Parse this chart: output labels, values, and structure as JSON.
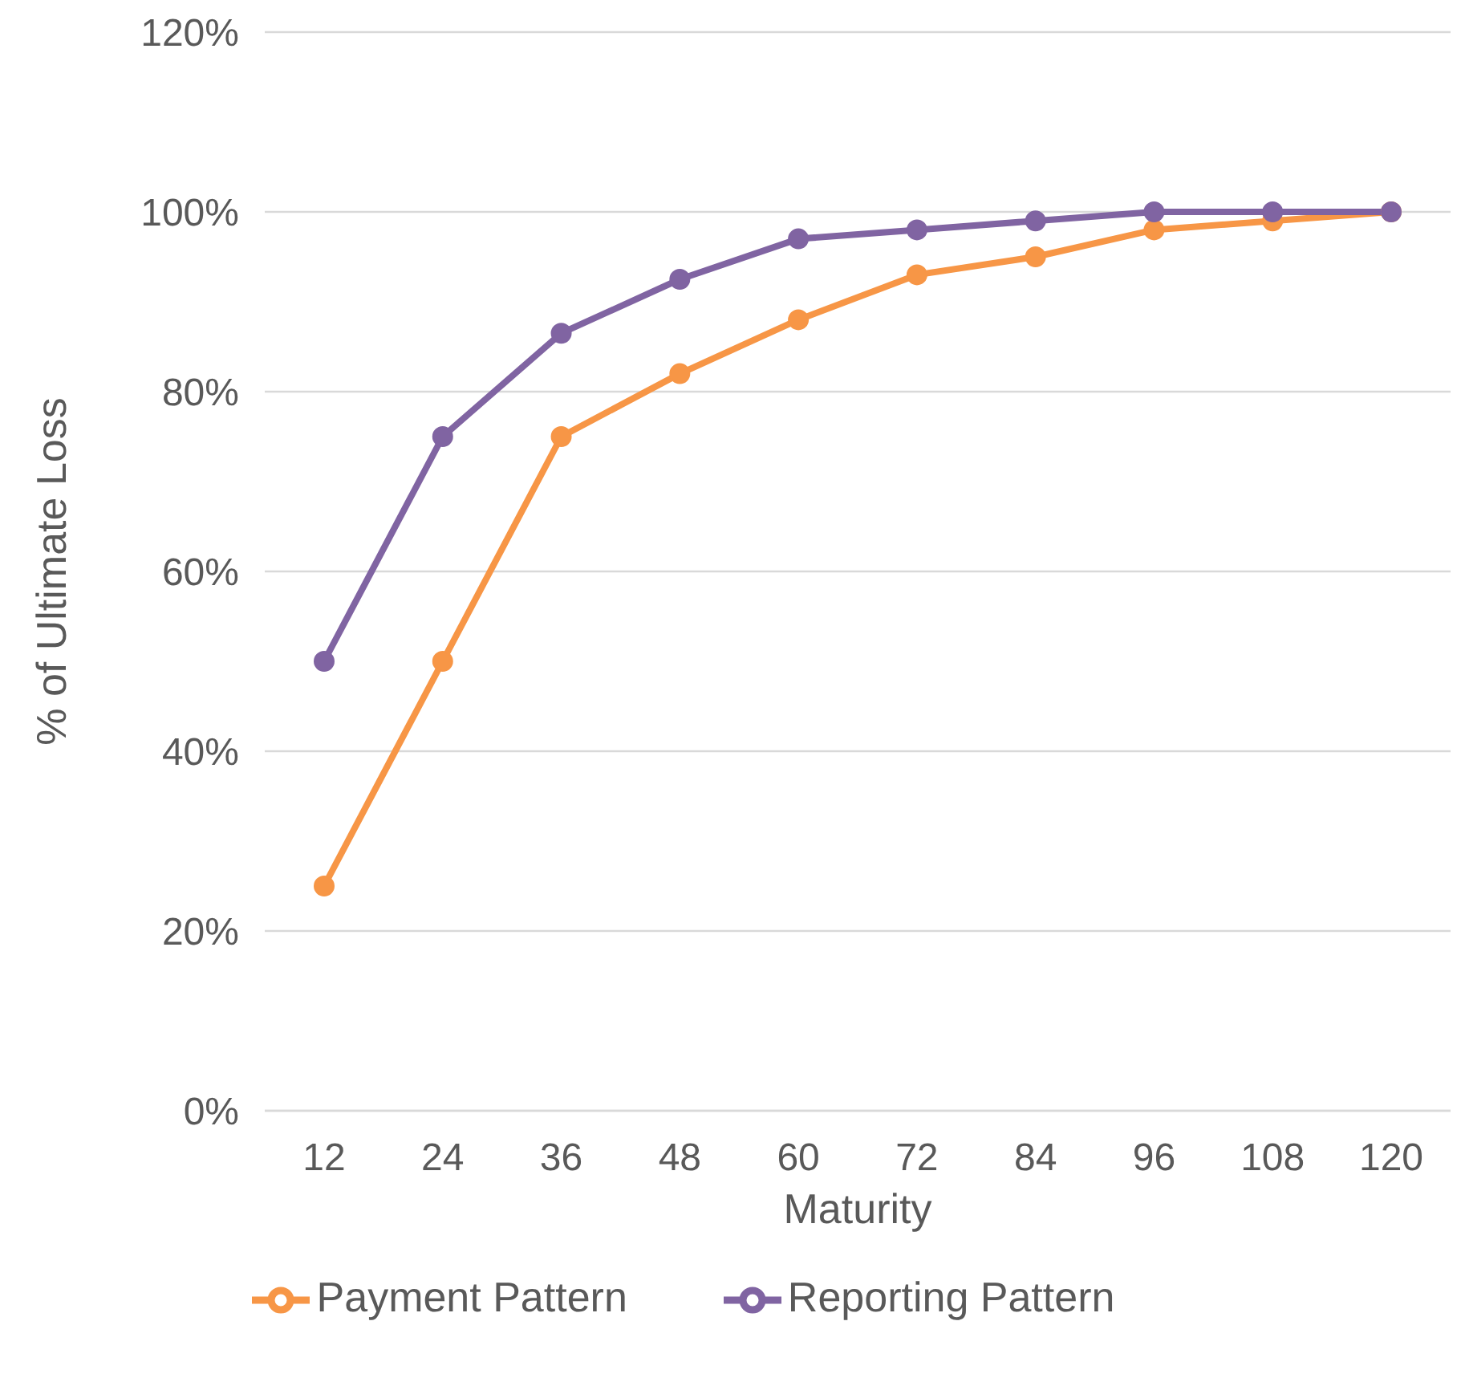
{
  "chart_data": {
    "type": "line",
    "xlabel": "Maturity",
    "ylabel": "% of Ultimate Loss",
    "categories": [
      "12",
      "24",
      "36",
      "48",
      "60",
      "72",
      "84",
      "96",
      "108",
      "120"
    ],
    "series": [
      {
        "name": "Payment Pattern",
        "color": "#f79646",
        "values": [
          25,
          50,
          75,
          82,
          88,
          93,
          95,
          98,
          99,
          100
        ]
      },
      {
        "name": "Reporting Pattern",
        "color": "#8064a2",
        "values": [
          50,
          75,
          86.5,
          92.5,
          97,
          98,
          99,
          100,
          100,
          100
        ]
      }
    ],
    "ylim": [
      0,
      120
    ],
    "yticks": [
      {
        "value": 0,
        "label": "0%"
      },
      {
        "value": 20,
        "label": "20%"
      },
      {
        "value": 40,
        "label": "40%"
      },
      {
        "value": 60,
        "label": "60%"
      },
      {
        "value": 80,
        "label": "80%"
      },
      {
        "value": 100,
        "label": "100%"
      },
      {
        "value": 120,
        "label": "120%"
      }
    ],
    "grid": "y",
    "legend": "bottom",
    "marker": "circle",
    "line_style": "solid"
  }
}
